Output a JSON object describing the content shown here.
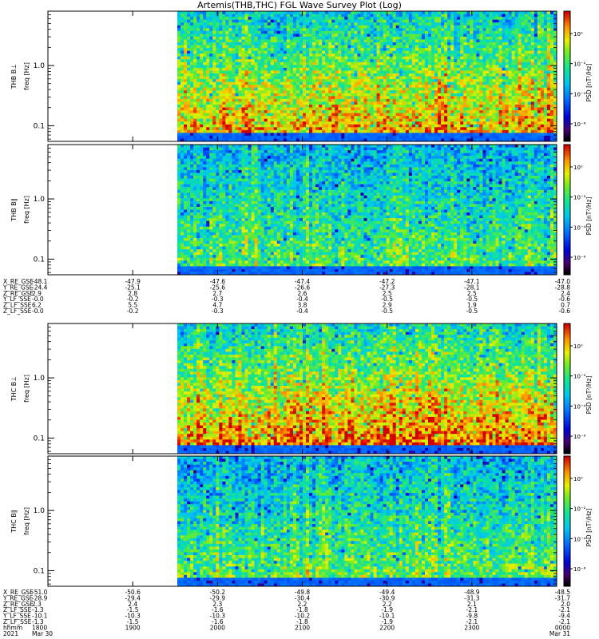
{
  "title": "Artemis(THB,THC) FGL Wave Survey Plot (Log)",
  "chart_data": {
    "type": "heatmap",
    "data_start_hhmm": "1839",
    "panels": [
      {
        "id": "thb-bperp",
        "probe_label": "THB B⊥",
        "ylabel": "freq [Hz]",
        "y_scale": "log",
        "y_ticks": [
          "1.0",
          "0.1"
        ],
        "colorbar_label": "PSD [nT²/Hz]",
        "colorbar_ticks": [
          "10⁰",
          "10⁻²",
          "10⁻⁴",
          "10⁻⁶"
        ],
        "seed": 11,
        "bias": 0.18
      },
      {
        "id": "thb-bpar",
        "probe_label": "THB B∥",
        "ylabel": "freq [Hz]",
        "y_scale": "log",
        "y_ticks": [
          "1.0",
          "0.1"
        ],
        "colorbar_label": "PSD [nT²/Hz]",
        "colorbar_ticks": [
          "10⁰",
          "10⁻²",
          "10⁻⁴",
          "10⁻⁶"
        ],
        "seed": 29,
        "bias": 0.0
      },
      {
        "id": "thc-bperp",
        "probe_label": "THC B⊥",
        "ylabel": "freq [Hz]",
        "y_scale": "log",
        "y_ticks": [
          "1.0",
          "0.1"
        ],
        "colorbar_label": "PSD [nT²/Hz]",
        "colorbar_ticks": [
          "10⁰",
          "10⁻²",
          "10⁻⁴",
          "10⁻⁶"
        ],
        "seed": 43,
        "bias": 0.22
      },
      {
        "id": "thc-bpar",
        "probe_label": "THC B∥",
        "ylabel": "freq [Hz]",
        "y_scale": "log",
        "y_ticks": [
          "1.0",
          "0.1"
        ],
        "colorbar_label": "PSD [nT²/Hz]",
        "colorbar_ticks": [
          "10⁰",
          "10⁻²",
          "10⁻⁴",
          "10⁻⁶"
        ],
        "seed": 67,
        "bias": 0.02
      }
    ],
    "thb_ephemeris": {
      "rows": [
        {
          "label": "X_RE_GSE",
          "values": [
            "-48.1",
            "-47.9",
            "-47.6",
            "-47.4",
            "-47.2",
            "-47.1",
            "-47.0"
          ]
        },
        {
          "label": "Y_RE_GSE",
          "values": [
            "-24.4",
            "-25.1",
            "-25.6",
            "-26.6",
            "-27.3",
            "-28.1",
            "-28.8"
          ]
        },
        {
          "label": "Z_RE_GSE",
          "values": [
            "2.9",
            "2.8",
            "2.7",
            "2.6",
            "2.5",
            "2.5",
            "2.4"
          ]
        },
        {
          "label": "Y_LF_SSE",
          "values": [
            "-0.0",
            "-0.2",
            "-0.3",
            "-0.4",
            "-0.5",
            "-0.5",
            "-0.6"
          ]
        },
        {
          "label": "Z_LF_SSE",
          "values": [
            "6.2",
            "5.5",
            "4.7",
            "3.8",
            "2.9",
            "1.9",
            "0.7"
          ]
        },
        {
          "label": "Z_LF_SSE",
          "values": [
            "-0.0",
            "-0.2",
            "-0.3",
            "-0.4",
            "-0.5",
            "-0.5",
            "-0.6"
          ]
        }
      ]
    },
    "thc_ephemeris": {
      "rows": [
        {
          "label": "X_RE_GSE",
          "values": [
            "-51.0",
            "-50.6",
            "-50.2",
            "-49.8",
            "-49.4",
            "-48.9",
            "-48.5"
          ]
        },
        {
          "label": "Y_RE_GSE",
          "values": [
            "-28.9",
            "-29.4",
            "-29.9",
            "-30.4",
            "-30.9",
            "-31.3",
            "-31.7"
          ]
        },
        {
          "label": "Z_RE_GSE",
          "values": [
            "2.3",
            "2.4",
            "2.3",
            "2.2",
            "2.2",
            "2.1",
            "2.0"
          ]
        },
        {
          "label": "Z_LF_SSE",
          "values": [
            "-1.3",
            "-1.5",
            "-1.6",
            "-1.8",
            "-1.9",
            "-2.1",
            "-2.1"
          ]
        },
        {
          "label": "Y_LF_SSE",
          "values": [
            "-10.1",
            "-10.3",
            "-10.3",
            "-10.2",
            "-10.1",
            "-9.8",
            "-9.4"
          ]
        },
        {
          "label": "Z_LF_SSE",
          "values": [
            "-1.3",
            "-1.5",
            "-1.6",
            "-1.8",
            "-1.9",
            "-2.1",
            "-2.1"
          ]
        }
      ],
      "time_label": "hhmm",
      "time_values": [
        "1800",
        "1900",
        "2000",
        "2100",
        "2200",
        "2300",
        "0000"
      ],
      "date_row_label": "2021",
      "date_left": "Mar 30",
      "date_right": "Mar 31"
    }
  }
}
